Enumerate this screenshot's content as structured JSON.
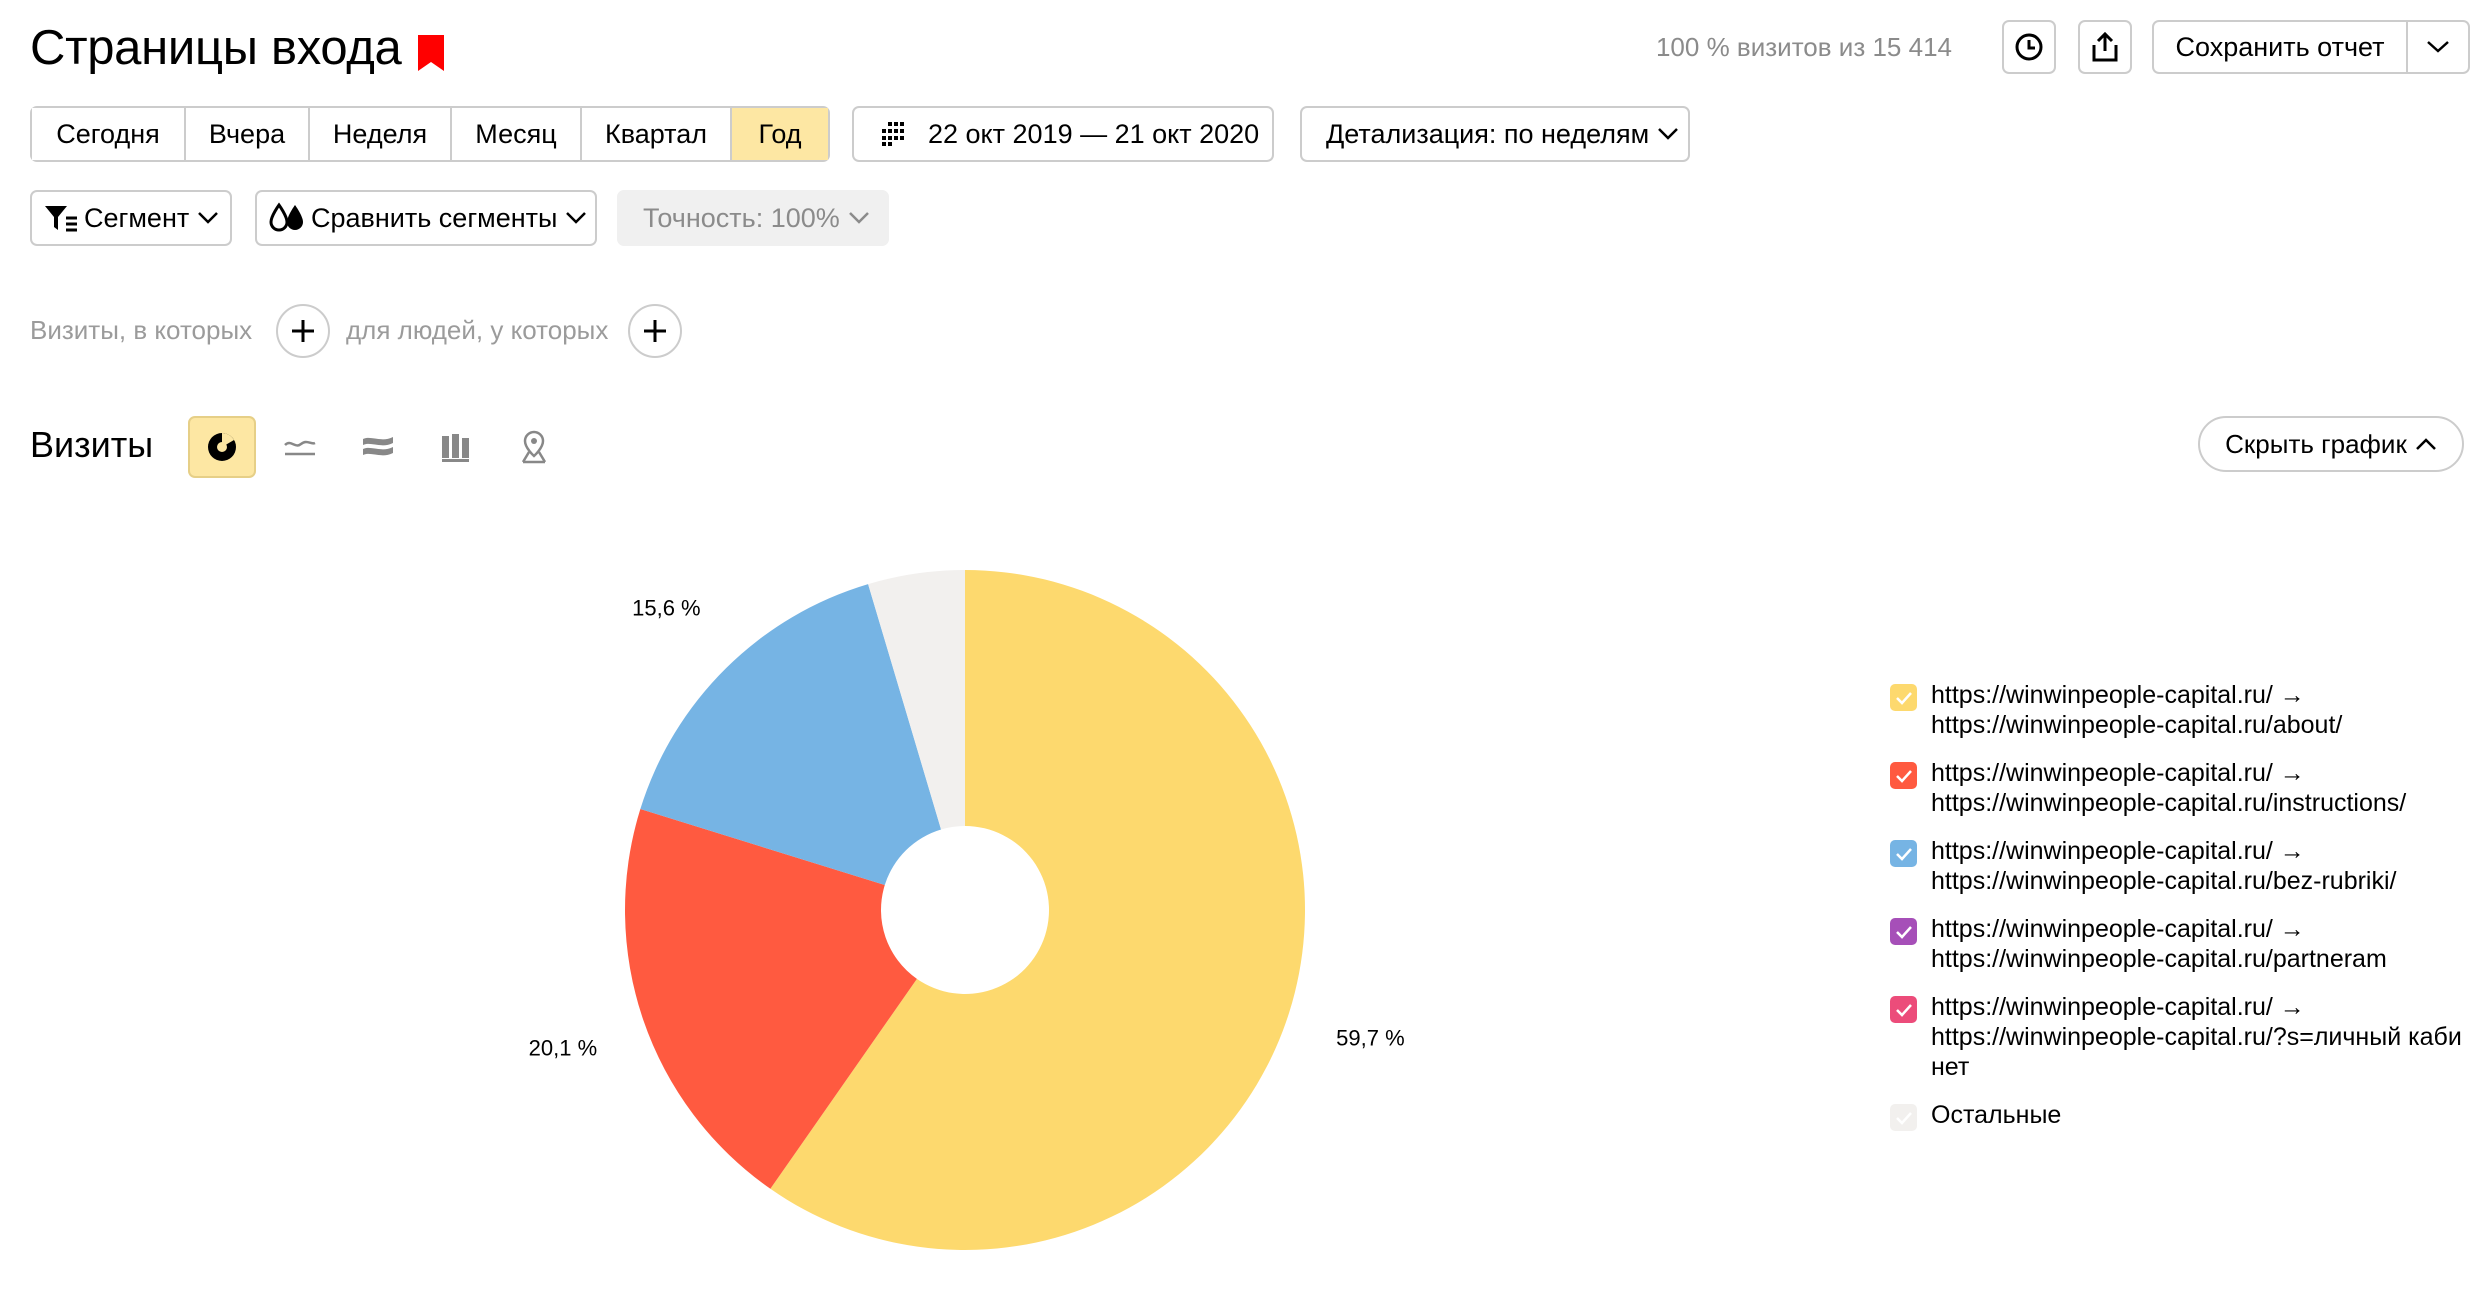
{
  "header": {
    "title": "Страницы входа",
    "visits_info": "100 % визитов из 15 414",
    "save_label": "Сохранить отчет"
  },
  "periods": [
    {
      "label": "Сегодня",
      "active": false
    },
    {
      "label": "Вчера",
      "active": false
    },
    {
      "label": "Неделя",
      "active": false
    },
    {
      "label": "Месяц",
      "active": false
    },
    {
      "label": "Квартал",
      "active": false
    },
    {
      "label": "Год",
      "active": true
    }
  ],
  "date_range": "22 окт 2019 — 21 окт 2020",
  "detail_label": "Детализация: по неделям",
  "filters": {
    "segment": "Сегмент",
    "compare": "Сравнить сегменты",
    "accuracy": "Точность: 100%"
  },
  "conditions": {
    "visits_label": "Визиты, в которых",
    "people_label": "для людей, у которых"
  },
  "section": {
    "title": "Визиты",
    "hide_chart": "Скрыть график"
  },
  "colors": {
    "accent": "#fde7a3",
    "bookmark": "#ff0000"
  },
  "chart_data": {
    "type": "pie",
    "donut": true,
    "slices": [
      {
        "label": "https://winwinpeople-capital.ru/ → https://winwinpeople-capital.ru/about/",
        "value": 59.7,
        "value_label": "59,7 %",
        "color": "#fdd96e"
      },
      {
        "label": "https://winwinpeople-capital.ru/ → https://winwinpeople-capital.ru/instructions/",
        "value": 20.1,
        "value_label": "20,1 %",
        "color": "#ff5a40"
      },
      {
        "label": "https://winwinpeople-capital.ru/ → https://winwinpeople-capital.ru/bez-rubriki/",
        "value": 15.6,
        "value_label": "15,6 %",
        "color": "#76b4e4"
      },
      {
        "label": "Остальные",
        "value": 4.6,
        "value_label": "",
        "color": "#f2f0ee"
      }
    ]
  },
  "legend": [
    {
      "line1": "https://winwinpeople-capital.ru/ →",
      "line2": "https://winwinpeople-capital.ru/about/",
      "color": "#fdd96e"
    },
    {
      "line1": "https://winwinpeople-capital.ru/ →",
      "line2": "https://winwinpeople-capital.ru/instructions/",
      "color": "#ff5a40"
    },
    {
      "line1": "https://winwinpeople-capital.ru/ →",
      "line2": "https://winwinpeople-capital.ru/bez-rubriki/",
      "color": "#76b4e4"
    },
    {
      "line1": "https://winwinpeople-capital.ru/ →",
      "line2": "https://winwinpeople-capital.ru/partneram",
      "color": "#a64fb8"
    },
    {
      "line1": "https://winwinpeople-capital.ru/ →",
      "line2": "https://winwinpeople-capital.ru/?s=личный кабинет",
      "color": "#ec4c7a"
    },
    {
      "line1": "Остальные",
      "line2": "",
      "color": "#f2f0ee"
    }
  ]
}
